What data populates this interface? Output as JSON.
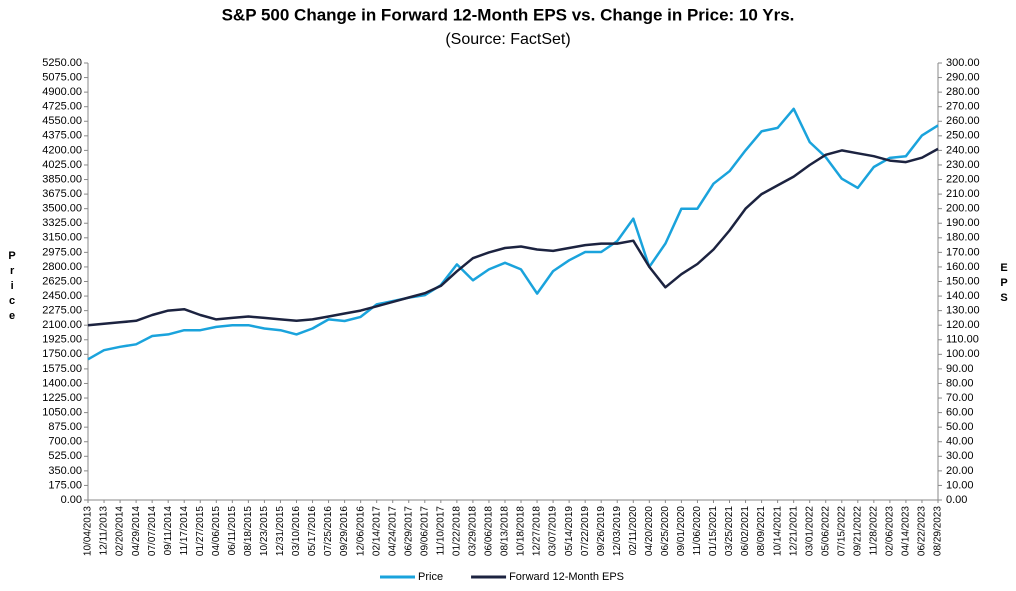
{
  "chart_data": {
    "type": "line",
    "title": "S&P 500 Change in Forward 12-Month EPS vs. Change in Price: 10 Yrs.",
    "subtitle": "(Source: FactSet)",
    "ylabel": "Price",
    "y2label": "EPS",
    "grid": false,
    "legend": "bottom",
    "categories": [
      "10/04/2013",
      "12/11/2013",
      "02/20/2014",
      "04/29/2014",
      "07/07/2014",
      "09/11/2014",
      "11/17/2014",
      "01/27/2015",
      "04/06/2015",
      "06/11/2015",
      "08/18/2015",
      "10/23/2015",
      "12/31/2015",
      "03/10/2016",
      "05/17/2016",
      "07/25/2016",
      "09/29/2016",
      "12/06/2016",
      "02/14/2017",
      "04/24/2017",
      "06/29/2017",
      "09/06/2017",
      "11/10/2017",
      "01/22/2018",
      "03/29/2018",
      "06/06/2018",
      "08/13/2018",
      "10/18/2018",
      "12/27/2018",
      "03/07/2019",
      "05/14/2019",
      "07/22/2019",
      "09/26/2019",
      "12/03/2019",
      "02/11/2020",
      "04/20/2020",
      "06/25/2020",
      "09/01/2020",
      "11/06/2020",
      "01/15/2021",
      "03/25/2021",
      "06/02/2021",
      "08/09/2021",
      "10/14/2021",
      "12/21/2021",
      "03/01/2022",
      "05/06/2022",
      "07/15/2022",
      "09/21/2022",
      "11/28/2022",
      "02/06/2023",
      "04/14/2023",
      "06/22/2023",
      "08/29/2023"
    ],
    "series": [
      {
        "name": "Price",
        "color": "#1aa3dc",
        "values": [
          1690,
          1800,
          1840,
          1870,
          1970,
          1990,
          2040,
          2040,
          2080,
          2100,
          2100,
          2060,
          2040,
          1990,
          2060,
          2170,
          2150,
          2200,
          2350,
          2390,
          2430,
          2460,
          2580,
          2830,
          2640,
          2770,
          2850,
          2770,
          2480,
          2750,
          2880,
          2980,
          2980,
          3110,
          3380,
          2800,
          3080,
          3500,
          3500,
          3800,
          3950,
          4200,
          4430,
          4470,
          4700,
          4300,
          4120,
          3860,
          3750,
          4000,
          4110,
          4130,
          4380,
          4500
        ]
      },
      {
        "name": "Forward 12-Month EPS",
        "color": "#1c2340",
        "axis": "y2",
        "values": [
          120,
          121,
          122,
          123,
          127,
          130,
          131,
          127,
          124,
          125,
          126,
          125,
          124,
          123,
          124,
          126,
          128,
          130,
          133,
          136,
          139,
          142,
          147,
          157,
          166,
          170,
          173,
          174,
          172,
          171,
          173,
          175,
          176,
          176,
          178,
          160,
          146,
          155,
          162,
          172,
          185,
          200,
          210,
          216,
          222,
          230,
          237,
          240,
          238,
          236,
          233,
          232,
          235,
          241
        ]
      }
    ],
    "ylim": [
      0,
      5250
    ],
    "yticks": [
      {
        "value": 0,
        "label": "0.00"
      },
      {
        "value": 175,
        "label": "175.00"
      },
      {
        "value": 350,
        "label": "350.00"
      },
      {
        "value": 525,
        "label": "525.00"
      },
      {
        "value": 700,
        "label": "700.00"
      },
      {
        "value": 875,
        "label": "875.00"
      },
      {
        "value": 1050,
        "label": "1050.00"
      },
      {
        "value": 1225,
        "label": "1225.00"
      },
      {
        "value": 1400,
        "label": "1400.00"
      },
      {
        "value": 1575,
        "label": "1575.00"
      },
      {
        "value": 1750,
        "label": "1750.00"
      },
      {
        "value": 1925,
        "label": "1925.00"
      },
      {
        "value": 2100,
        "label": "2100.00"
      },
      {
        "value": 2275,
        "label": "2275.00"
      },
      {
        "value": 2450,
        "label": "2450.00"
      },
      {
        "value": 2625,
        "label": "2625.00"
      },
      {
        "value": 2800,
        "label": "2800.00"
      },
      {
        "value": 2975,
        "label": "2975.00"
      },
      {
        "value": 3150,
        "label": "3150.00"
      },
      {
        "value": 3325,
        "label": "3325.00"
      },
      {
        "value": 3500,
        "label": "3500.00"
      },
      {
        "value": 3675,
        "label": "3675.00"
      },
      {
        "value": 3850,
        "label": "3850.00"
      },
      {
        "value": 4025,
        "label": "4025.00"
      },
      {
        "value": 4200,
        "label": "4200.00"
      },
      {
        "value": 4375,
        "label": "4375.00"
      },
      {
        "value": 4550,
        "label": "4550.00"
      },
      {
        "value": 4725,
        "label": "4725.00"
      },
      {
        "value": 4900,
        "label": "4900.00"
      },
      {
        "value": 5075,
        "label": "5075.00"
      },
      {
        "value": 5250,
        "label": "5250.00"
      }
    ],
    "y2lim": [
      0,
      300
    ],
    "y2ticks": [
      {
        "value": 0,
        "label": "0.00"
      },
      {
        "value": 10,
        "label": "10.00"
      },
      {
        "value": 20,
        "label": "20.00"
      },
      {
        "value": 30,
        "label": "30.00"
      },
      {
        "value": 40,
        "label": "40.00"
      },
      {
        "value": 50,
        "label": "50.00"
      },
      {
        "value": 60,
        "label": "60.00"
      },
      {
        "value": 70,
        "label": "70.00"
      },
      {
        "value": 80,
        "label": "80.00"
      },
      {
        "value": 90,
        "label": "90.00"
      },
      {
        "value": 100,
        "label": "100.00"
      },
      {
        "value": 110,
        "label": "110.00"
      },
      {
        "value": 120,
        "label": "120.00"
      },
      {
        "value": 130,
        "label": "130.00"
      },
      {
        "value": 140,
        "label": "140.00"
      },
      {
        "value": 150,
        "label": "150.00"
      },
      {
        "value": 160,
        "label": "160.00"
      },
      {
        "value": 170,
        "label": "170.00"
      },
      {
        "value": 180,
        "label": "180.00"
      },
      {
        "value": 190,
        "label": "190.00"
      },
      {
        "value": 200,
        "label": "200.00"
      },
      {
        "value": 210,
        "label": "210.00"
      },
      {
        "value": 220,
        "label": "220.00"
      },
      {
        "value": 230,
        "label": "230.00"
      },
      {
        "value": 240,
        "label": "240.00"
      },
      {
        "value": 250,
        "label": "250.00"
      },
      {
        "value": 260,
        "label": "260.00"
      },
      {
        "value": 270,
        "label": "270.00"
      },
      {
        "value": 280,
        "label": "280.00"
      },
      {
        "value": 290,
        "label": "290.00"
      },
      {
        "value": 300,
        "label": "300.00"
      }
    ]
  }
}
